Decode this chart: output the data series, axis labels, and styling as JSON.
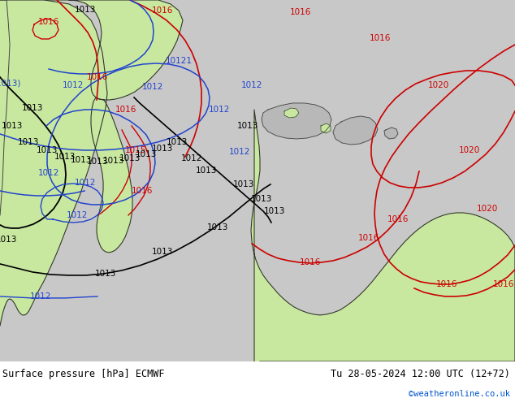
{
  "title_left": "Surface pressure [hPa] ECMWF",
  "title_right": "Tu 28-05-2024 12:00 UTC (12+72)",
  "credit": "©weatheronline.co.uk",
  "bg_ocean_left": "#c8c8c8",
  "bg_ocean_right": "#d0d0d0",
  "bg_main": "#d0d0d0",
  "land_green": "#c8e8a0",
  "land_gray": "#b8b8b8",
  "isobar_red": "#cc0000",
  "isobar_blue": "#2244cc",
  "isobar_black": "#000000",
  "footer_bg": "#ffffff",
  "figsize": [
    6.34,
    4.9
  ],
  "dpi": 100
}
